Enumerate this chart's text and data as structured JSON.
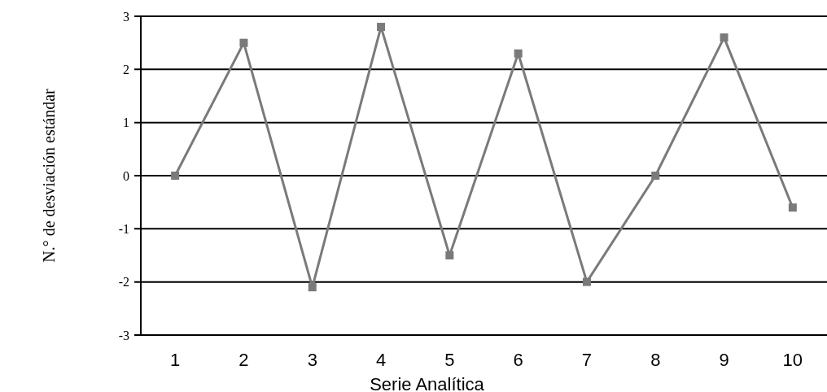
{
  "chart_data": {
    "type": "line",
    "xlabel": "Serie Analítica",
    "ylabel": "N.° de desviación estándar",
    "categories": [
      "1",
      "2",
      "3",
      "4",
      "5",
      "6",
      "7",
      "8",
      "9",
      "10"
    ],
    "series": [
      {
        "color": "#7a7a7a",
        "values": [
          0,
          2.5,
          -2.1,
          2.8,
          -1.5,
          2.3,
          -2.0,
          0,
          2.6,
          -0.6
        ]
      }
    ],
    "ylim": [
      -3,
      3
    ],
    "yticks": [
      -3,
      -2,
      -1,
      0,
      1,
      2,
      3
    ],
    "grid": "y",
    "marker": "square",
    "line_style": "solid"
  }
}
